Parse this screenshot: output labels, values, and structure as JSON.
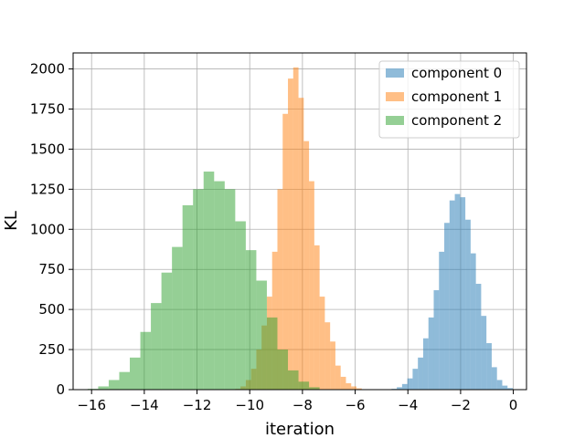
{
  "chart_data": {
    "type": "bar",
    "xlabel": "iteration",
    "ylabel": "KL",
    "xlim": [
      -16.7,
      0.5
    ],
    "ylim": [
      0,
      2100
    ],
    "x_ticks": [
      -16,
      -14,
      -12,
      -10,
      -8,
      -6,
      -4,
      -2,
      0
    ],
    "y_ticks": [
      0,
      250,
      500,
      750,
      1000,
      1250,
      1500,
      1750,
      2000
    ],
    "grid": true,
    "legend_position": "top-right",
    "series": [
      {
        "name": "component 0",
        "color": "#1f77b4",
        "opacity": 0.5,
        "bin_start": -4.62,
        "bin_width": 0.2,
        "values": [
          5,
          15,
          35,
          70,
          130,
          200,
          320,
          450,
          620,
          860,
          1040,
          1180,
          1220,
          1200,
          1060,
          850,
          660,
          460,
          290,
          140,
          60,
          25,
          10
        ]
      },
      {
        "name": "component 1",
        "color": "#ff7f0e",
        "opacity": 0.5,
        "bin_start": -10.55,
        "bin_width": 0.2,
        "values": [
          5,
          20,
          60,
          130,
          250,
          400,
          580,
          860,
          1250,
          1720,
          1940,
          2010,
          1820,
          1550,
          1300,
          900,
          580,
          420,
          300,
          150,
          80,
          40,
          20,
          8
        ]
      },
      {
        "name": "component 2",
        "color": "#2ca02c",
        "opacity": 0.5,
        "bin_start": -16.15,
        "bin_width": 0.4,
        "values": [
          5,
          20,
          60,
          110,
          200,
          360,
          540,
          730,
          890,
          1150,
          1250,
          1360,
          1300,
          1250,
          1050,
          870,
          680,
          450,
          250,
          120,
          50,
          15
        ]
      }
    ]
  }
}
